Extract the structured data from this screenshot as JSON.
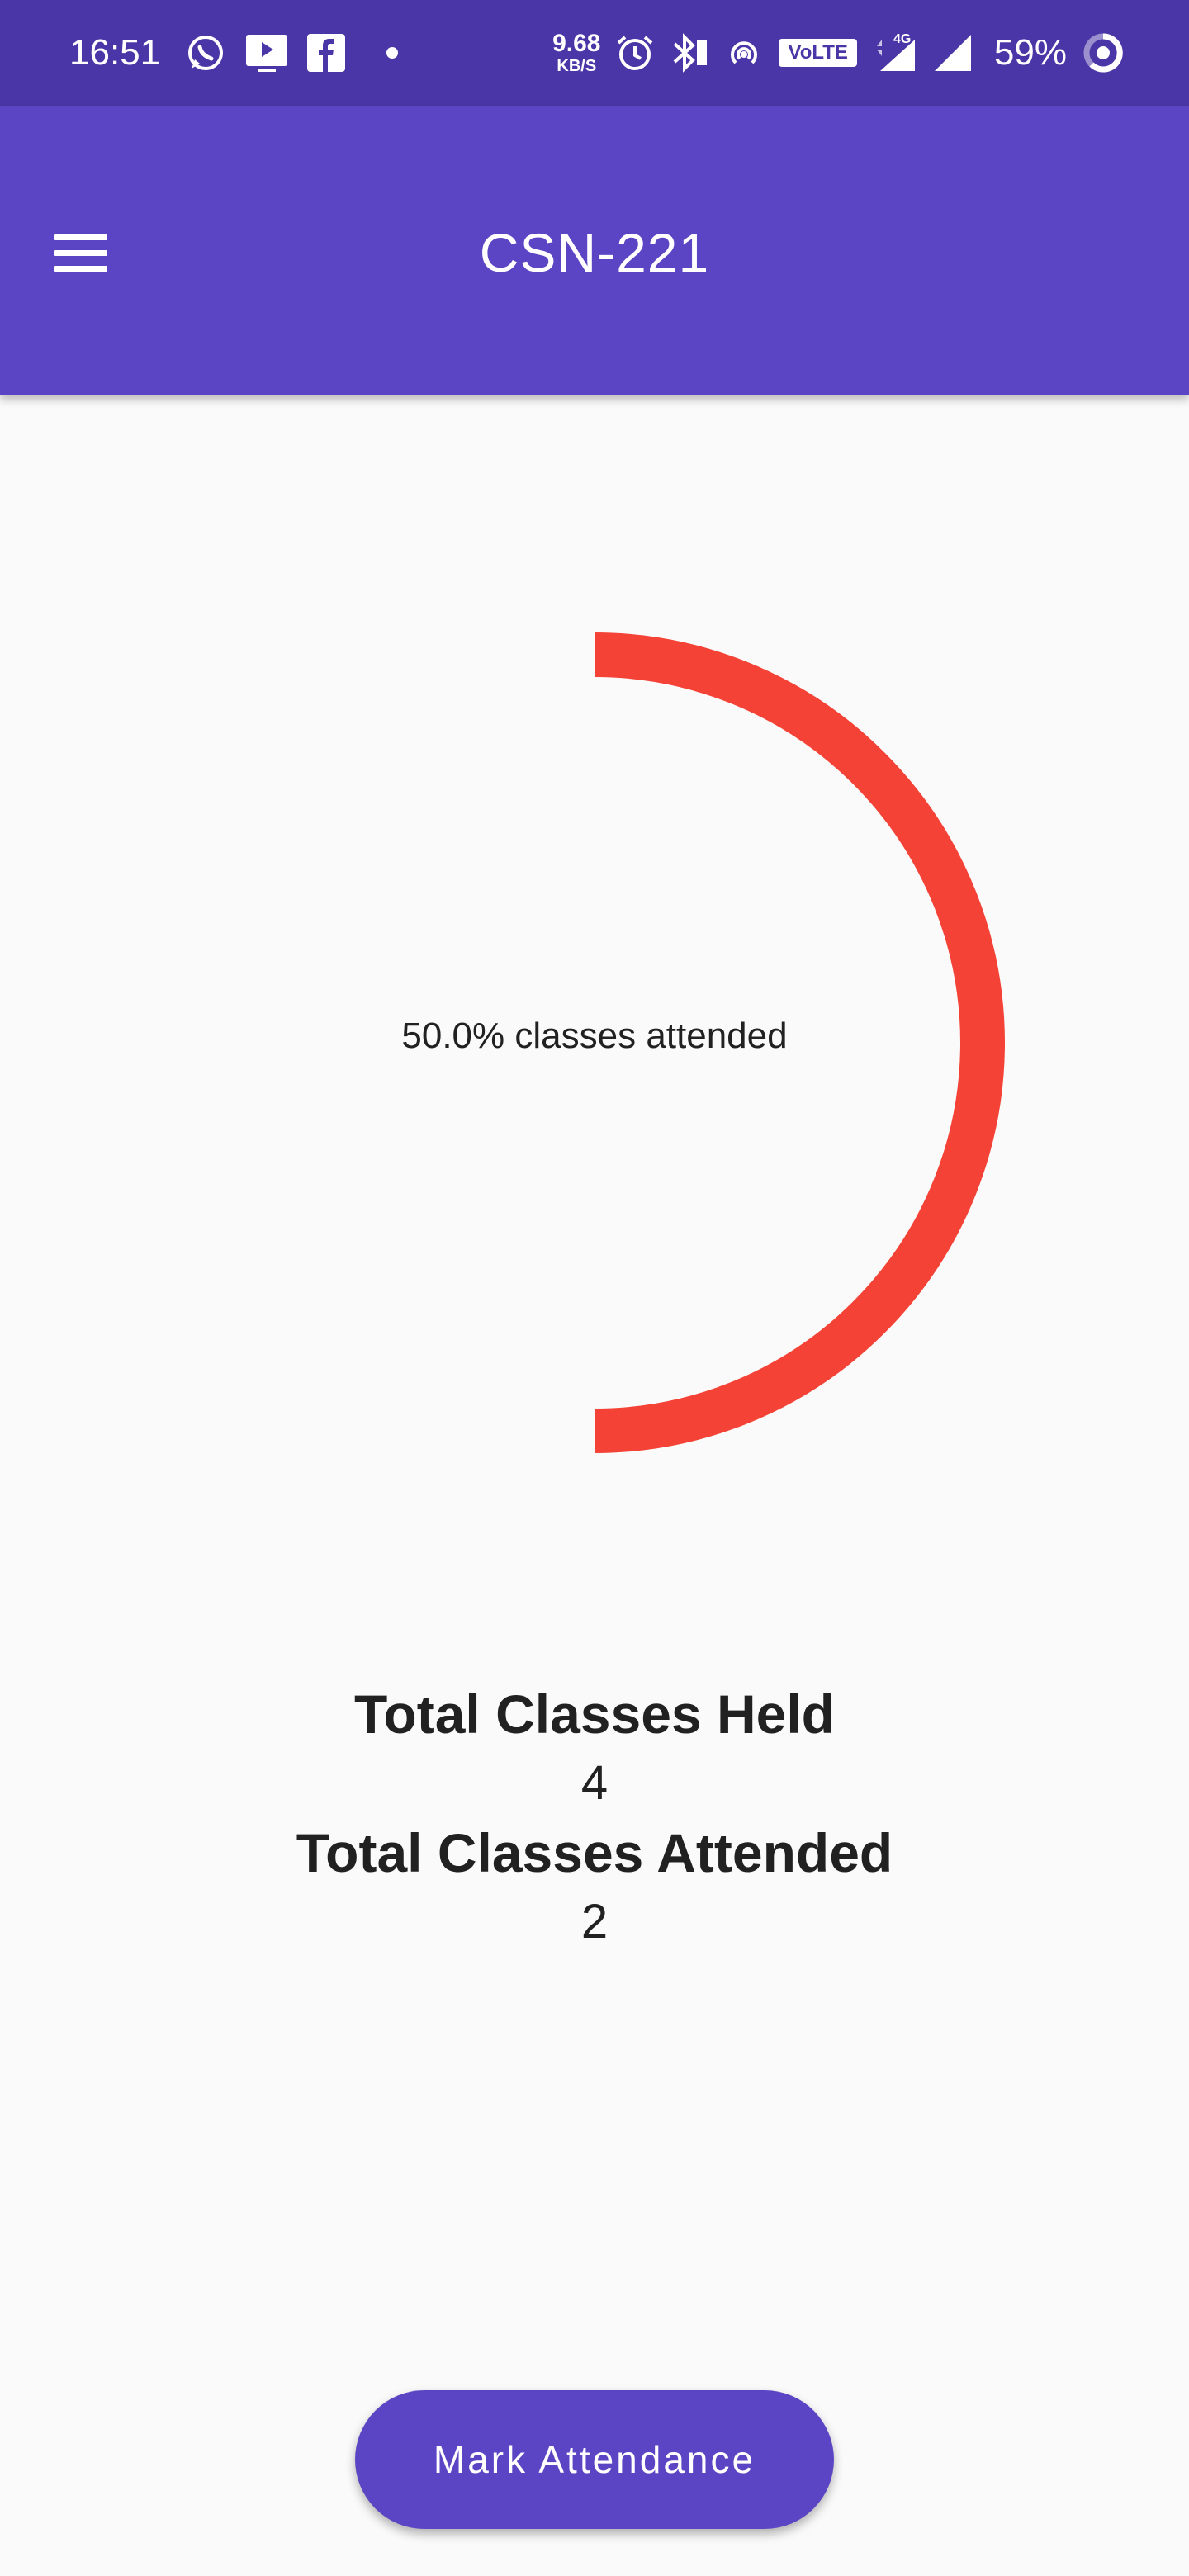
{
  "status_bar": {
    "time": "16:51",
    "net_speed_value": "9.68",
    "net_speed_unit": "KB/S",
    "volte_label": "VoLTE",
    "network_type": "4G",
    "battery_percent": "59%",
    "icons": [
      "whatsapp-icon",
      "youtube-icon",
      "facebook-icon",
      "alarm-icon",
      "bluetooth-icon",
      "hotspot-icon",
      "signal-icon",
      "battery-icon"
    ]
  },
  "app_bar": {
    "title": "CSN-221",
    "menu_icon": "hamburger-menu-icon"
  },
  "progress": {
    "label": "50.0% classes attended",
    "fraction": 0.5,
    "color": "#f44336"
  },
  "stats": {
    "held_label": "Total Classes Held",
    "held_value": "4",
    "attended_label": "Total Classes Attended",
    "attended_value": "2"
  },
  "actions": {
    "mark_attendance_label": "Mark Attendance"
  },
  "colors": {
    "status_bar": "#4a36a6",
    "primary": "#5c45c4",
    "accent_ring": "#f44336",
    "background": "#fafafa"
  }
}
